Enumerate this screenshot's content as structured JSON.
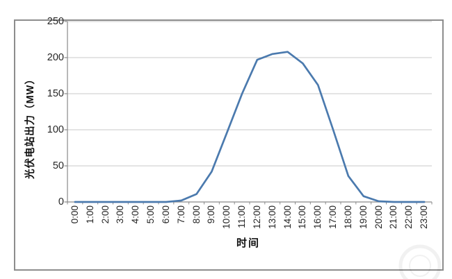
{
  "chart_data": {
    "type": "line",
    "title": "",
    "xlabel": "时间",
    "ylabel": "光伏电站出力（MW）",
    "categories": [
      "0:00",
      "1:00",
      "2:00",
      "3:00",
      "4:00",
      "5:00",
      "6:00",
      "7:00",
      "8:00",
      "9:00",
      "10:00",
      "11:00",
      "12:00",
      "13:00",
      "14:00",
      "15:00",
      "16:00",
      "17:00",
      "18:00",
      "19:00",
      "20:00",
      "21:00",
      "22:00",
      "23:00"
    ],
    "series": [
      {
        "name": "光伏电站出力",
        "values": [
          0,
          0,
          0,
          0,
          0,
          0,
          0,
          2,
          11,
          42,
          96,
          150,
          197,
          205,
          208,
          192,
          162,
          100,
          36,
          8,
          1,
          0,
          0,
          0
        ]
      }
    ],
    "ylim": [
      0,
      250
    ],
    "yticks": [
      0,
      50,
      100,
      150,
      200,
      250
    ],
    "grid": "horizontal",
    "legend": "none"
  },
  "colors": {
    "line": "#4b7aae",
    "gridline": "#c9c9c9",
    "axis": "#8a8a8a",
    "tick_text": "#262626",
    "frame_border": "#8d8d8d",
    "background": "#ffffff",
    "watermark": "rgba(0,0,0,0.055)"
  }
}
